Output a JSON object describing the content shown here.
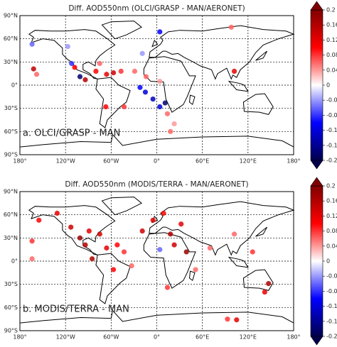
{
  "chart_data": [
    {
      "type": "scatter",
      "title": "Diff. AOD550nm (OLCI/GRASP - MAN/AERONET)",
      "annotation": "a. OLCI/GRASP - MAN",
      "x": [
        -162,
        -158,
        -164,
        -117,
        -112,
        -108,
        -101,
        -94,
        -80,
        -66,
        -57,
        -47,
        -29,
        -22,
        -15,
        -5,
        4,
        11,
        14,
        23,
        18,
        4,
        98,
        102,
        -67,
        -43,
        -14,
        -75,
        4,
        -19
      ],
      "y": [
        21,
        14,
        53,
        50,
        28,
        23,
        11,
        7,
        18,
        14,
        16,
        18,
        18,
        -3,
        -9,
        -18,
        -28,
        -23,
        -37,
        -50,
        -60,
        69,
        75,
        18,
        -28,
        -28,
        11,
        28,
        5,
        41
      ],
      "values": [
        0.15,
        0.06,
        -0.06,
        -0.04,
        -0.08,
        0.1,
        -0.18,
        0.16,
        0.1,
        0.12,
        0.14,
        0.08,
        0.06,
        -0.1,
        -0.12,
        -0.14,
        -0.12,
        -0.18,
        0.06,
        0.04,
        0.06,
        -0.1,
        0.06,
        0.12,
        0.1,
        0.08,
        0.06,
        0.06,
        0.04,
        -0.04
      ],
      "xlim": [
        -180,
        180
      ],
      "ylim": [
        -90,
        90
      ],
      "xticks": [
        {
          "value": -180,
          "label": "180°"
        },
        {
          "value": -120,
          "label": "120°W"
        },
        {
          "value": -60,
          "label": "60°W"
        },
        {
          "value": 0,
          "label": "0°"
        },
        {
          "value": 60,
          "label": "60°E"
        },
        {
          "value": 120,
          "label": "120°E"
        },
        {
          "value": 180,
          "label": "180°"
        }
      ],
      "yticks": [
        {
          "value": 90,
          "label": "90°N"
        },
        {
          "value": 60,
          "label": "60°N"
        },
        {
          "value": 30,
          "label": "30°N"
        },
        {
          "value": 0,
          "label": "0°"
        },
        {
          "value": -30,
          "label": "30°S"
        },
        {
          "value": -60,
          "label": "60°S"
        },
        {
          "value": -90,
          "label": "90°S"
        }
      ],
      "grid": true,
      "clim": [
        -0.2,
        0.2
      ],
      "cticks": [
        0.2,
        0.16,
        0.12,
        0.08,
        0.04,
        0,
        -0.04,
        -0.08,
        -0.12,
        -0.16,
        -0.2
      ],
      "colormap": [
        "#00004c",
        "#0000ff",
        "#ffffff",
        "#ff0000",
        "#800000"
      ]
    },
    {
      "type": "scatter",
      "title": "Diff. AOD550nm (MODIS/TERRA - MAN/AERONET)",
      "annotation": "b. MODIS/TERRA - MAN",
      "x": [
        -164,
        -164,
        -155,
        -131,
        -113,
        -101,
        -94,
        -89,
        -75,
        -66,
        -85,
        -52,
        -43,
        -57,
        -33,
        -19,
        -5,
        9,
        18,
        32,
        39,
        23,
        4,
        70,
        51,
        14,
        142,
        147,
        93,
        105,
        126,
        102
      ],
      "y": [
        26,
        3,
        53,
        62,
        44,
        30,
        21,
        39,
        35,
        17,
        3,
        21,
        12,
        -11,
        -6,
        39,
        53,
        62,
        35,
        48,
        12,
        21,
        15,
        17,
        -11,
        -34,
        -40,
        -29,
        -75,
        -76,
        12,
        35
      ],
      "values": [
        0.08,
        0.06,
        0.1,
        0.12,
        0.14,
        0.18,
        0.16,
        0.12,
        0.14,
        0.12,
        0.16,
        0.1,
        0.08,
        0.1,
        0.06,
        0.14,
        0.12,
        0.1,
        0.16,
        0.12,
        0.18,
        0.14,
        -0.06,
        0.06,
        0.06,
        0.08,
        0.12,
        0.16,
        0.08,
        0.12,
        0.08,
        0.06
      ],
      "xlim": [
        -180,
        180
      ],
      "ylim": [
        -90,
        90
      ],
      "xticks": [
        {
          "value": -180,
          "label": "180°"
        },
        {
          "value": -120,
          "label": "120°W"
        },
        {
          "value": -60,
          "label": "60°W"
        },
        {
          "value": 0,
          "label": "0°"
        },
        {
          "value": 60,
          "label": "60°E"
        },
        {
          "value": 120,
          "label": "120°E"
        },
        {
          "value": 180,
          "label": "180°"
        }
      ],
      "yticks": [
        {
          "value": 90,
          "label": "90°N"
        },
        {
          "value": 60,
          "label": "60°N"
        },
        {
          "value": 30,
          "label": "30°N"
        },
        {
          "value": 0,
          "label": "0°"
        },
        {
          "value": -30,
          "label": "30°S"
        },
        {
          "value": -60,
          "label": "60°S"
        },
        {
          "value": -90,
          "label": "90°S"
        }
      ],
      "grid": true,
      "clim": [
        -0.2,
        0.2
      ],
      "cticks": [
        0.2,
        0.16,
        0.12,
        0.08,
        0.04,
        0,
        -0.04,
        -0.08,
        -0.12,
        -0.16,
        -0.2
      ],
      "colormap": [
        "#00004c",
        "#0000ff",
        "#ffffff",
        "#ff0000",
        "#800000"
      ]
    }
  ]
}
